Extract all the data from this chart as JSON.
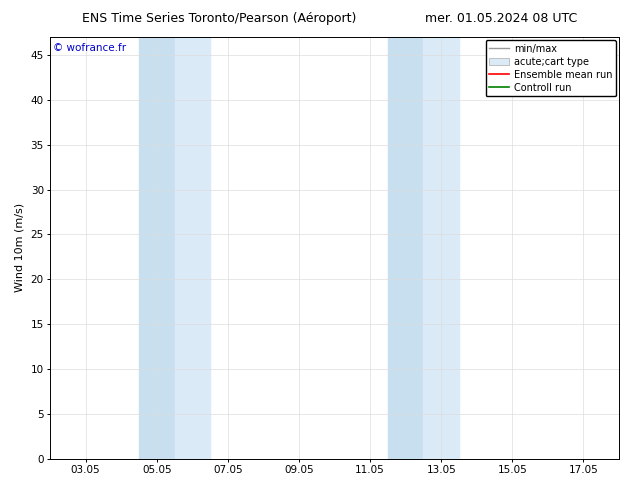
{
  "title_left": "ENS Time Series Toronto/Pearson (Aéroport)",
  "title_right": "mer. 01.05.2024 08 UTC",
  "ylabel": "Wind 10m (m/s)",
  "watermark": "© wofrance.fr",
  "xticklabels": [
    "03.05",
    "05.05",
    "07.05",
    "09.05",
    "11.05",
    "13.05",
    "15.05",
    "17.05"
  ],
  "xtick_positions": [
    3,
    5,
    7,
    9,
    11,
    13,
    15,
    17
  ],
  "xlim": [
    2.0,
    18.0
  ],
  "ylim": [
    0,
    47
  ],
  "yticks": [
    0,
    5,
    10,
    15,
    20,
    25,
    30,
    35,
    40,
    45
  ],
  "band1_x0": 4.5,
  "band1_x1": 5.5,
  "band2_x0": 5.5,
  "band2_x1": 6.5,
  "band3_x0": 11.5,
  "band3_x1": 12.5,
  "band4_x0": 12.5,
  "band4_x1": 13.5,
  "band_color_dark": "#c8dff0",
  "band_color_light": "#daeaf7",
  "background_color": "#ffffff",
  "watermark_color": "#0000cc",
  "title_fontsize": 9,
  "axis_fontsize": 8,
  "tick_fontsize": 7.5,
  "legend_fontsize": 7,
  "grid_color": "#dddddd",
  "spine_color": "#000000"
}
